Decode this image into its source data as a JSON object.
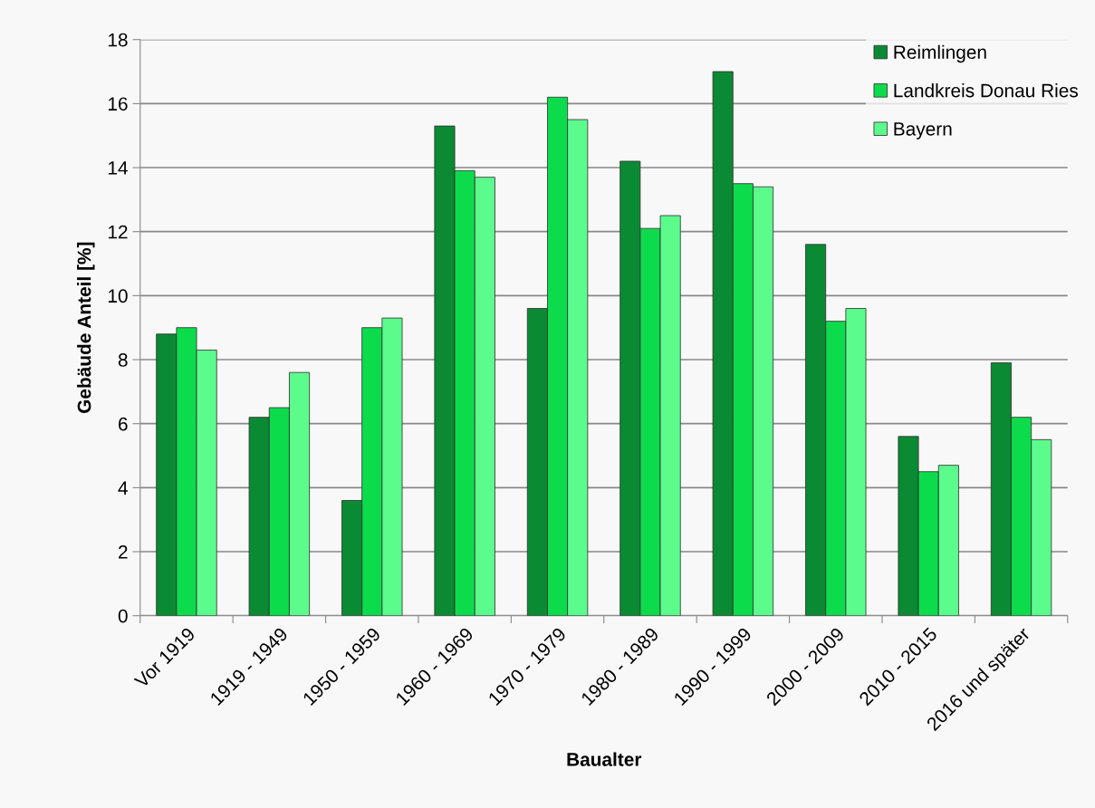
{
  "chart_data": {
    "type": "bar",
    "xlabel": "Baualter",
    "ylabel": "Gebäude Anteil [%]",
    "categories": [
      "Vor 1919",
      "1919 - 1949",
      "1950 - 1959",
      "1960 - 1969",
      "1970 - 1979",
      "1980 - 1989",
      "1990 - 1999",
      "2000 - 2009",
      "2010 - 2015",
      "2016 und später"
    ],
    "series": [
      {
        "name": "Reimlingen",
        "color": "#0a8a32",
        "values": [
          8.8,
          6.2,
          3.6,
          15.3,
          9.6,
          14.2,
          17.0,
          11.6,
          5.6,
          7.9
        ]
      },
      {
        "name": "Landkreis Donau Ries",
        "color": "#0cdc4c",
        "values": [
          9.0,
          6.5,
          9.0,
          13.9,
          16.2,
          12.1,
          13.5,
          9.2,
          4.5,
          6.2
        ]
      },
      {
        "name": "Bayern",
        "color": "#5cfc8c",
        "values": [
          8.3,
          7.6,
          9.3,
          13.7,
          15.5,
          12.5,
          13.4,
          9.6,
          4.7,
          5.5
        ]
      }
    ],
    "ylim": [
      0,
      18
    ],
    "yticks": [
      0,
      2,
      4,
      6,
      8,
      10,
      12,
      14,
      16,
      18
    ],
    "grid": "y",
    "legend": "top right"
  }
}
